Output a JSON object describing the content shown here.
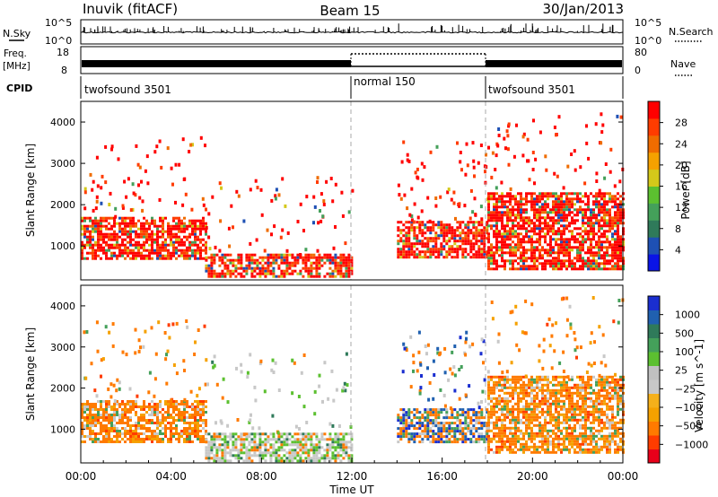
{
  "header": {
    "station": "Inuvik (fitACF)",
    "beam": "Beam 15",
    "date": "30/Jan/2013"
  },
  "noise_panel": {
    "left_label": "N.Sky",
    "right_label": "N.Search",
    "left_ticks": [
      "10^5",
      "10^0"
    ],
    "right_ticks": [
      "10^5",
      "10^0"
    ]
  },
  "freq_panel": {
    "left_label_1": "Freq.",
    "left_label_2": "[MHz]",
    "left_ticks": [
      "18",
      "8"
    ],
    "right_ticks": [
      "80",
      "0"
    ],
    "right_label": "Nave"
  },
  "cpid_panel": {
    "label": "CPID",
    "modes": [
      {
        "name": "twofsound 3501",
        "start_hour": 0,
        "end_hour": 12
      },
      {
        "name": "normal 150",
        "start_hour": 12,
        "end_hour": 18
      },
      {
        "name": "twofsound 3501",
        "start_hour": 18,
        "end_hour": 24
      }
    ]
  },
  "chart_data": [
    {
      "type": "heatmap",
      "title": "",
      "ylabel": "Slant Range [km]",
      "xlabel": "",
      "xlim": [
        0,
        24
      ],
      "ylim": [
        180,
        4500
      ],
      "yticks": [
        1000,
        2000,
        3000,
        4000
      ],
      "colorbar": {
        "label": "Power [dB]",
        "ticks": [
          "4",
          "8",
          "12",
          "16",
          "20",
          "24",
          "28"
        ],
        "range": [
          0,
          30
        ],
        "colors": [
          "#0a14e6",
          "#1e50b4",
          "#2f7a5a",
          "#44a05a",
          "#5cc030",
          "#d4c81a",
          "#f5a100",
          "#ef6c00",
          "#ff3c00",
          "#ff0000"
        ]
      },
      "features": [
        {
          "t0": 0.0,
          "t1": 5.5,
          "r0": 650,
          "r1": 1700,
          "level": "high"
        },
        {
          "t0": 5.5,
          "t1": 12.0,
          "r0": 250,
          "r1": 800,
          "level": "high"
        },
        {
          "t0": 14.0,
          "t1": 18.0,
          "r0": 700,
          "r1": 1600,
          "level": "high"
        },
        {
          "t0": 18.0,
          "t1": 24.0,
          "r0": 400,
          "r1": 2300,
          "level": "high"
        }
      ]
    },
    {
      "type": "heatmap",
      "title": "",
      "ylabel": "Slant Range [km]",
      "xlabel": "Time UT",
      "xlim": [
        0,
        24
      ],
      "ylim": [
        180,
        4500
      ],
      "yticks": [
        1000,
        2000,
        3000,
        4000
      ],
      "xtick_labels": [
        "00:00",
        "04:00",
        "08:00",
        "12:00",
        "16:00",
        "20:00",
        "00:00"
      ],
      "xtick_hours": [
        0,
        4,
        8,
        12,
        16,
        20,
        24
      ],
      "colorbar": {
        "label": "Velocity [m s^-1]",
        "ticks": [
          "1000",
          "500",
          "100",
          "25",
          "−25",
          "−100",
          "−500",
          "−1000"
        ],
        "range": [
          -1000,
          1000
        ],
        "colors": [
          "#e8001a",
          "#ff3c00",
          "#ff7a00",
          "#f5a100",
          "#f5b01a",
          "#c8c8c8",
          "#c0c0c0",
          "#5cc030",
          "#44a05a",
          "#2f7a5a",
          "#2060b0",
          "#1a2ed0"
        ]
      },
      "features": [
        {
          "t0": 0.0,
          "t1": 5.5,
          "r0": 650,
          "r1": 1700,
          "level": "negative"
        },
        {
          "t0": 5.5,
          "t1": 12.0,
          "r0": 200,
          "r1": 900,
          "level": "near-zero"
        },
        {
          "t0": 14.0,
          "t1": 18.0,
          "r0": 700,
          "r1": 1500,
          "level": "mixed"
        },
        {
          "t0": 18.0,
          "t1": 24.0,
          "r0": 400,
          "r1": 2300,
          "level": "negative"
        }
      ]
    }
  ]
}
